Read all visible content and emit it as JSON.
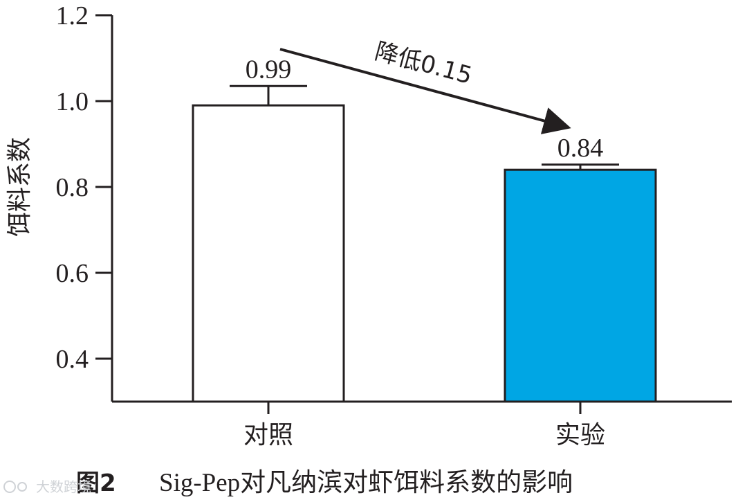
{
  "chart_data": {
    "type": "bar",
    "title": "",
    "xlabel": "",
    "ylabel": "饵料系数",
    "ylim": [
      0.3,
      1.2
    ],
    "yticks": [
      "0.4",
      "0.6",
      "0.8",
      "1.0",
      "1.2"
    ],
    "ytick_values": [
      0.4,
      0.6,
      0.8,
      1.0,
      1.2
    ],
    "categories": [
      "对照",
      "实验"
    ],
    "values": [
      0.99,
      0.84
    ],
    "errors": [
      0.045,
      0.012
    ],
    "data_labels": [
      "0.99",
      "0.84"
    ],
    "bar_colors": [
      "#ffffff",
      "#00a6e4"
    ],
    "edge_color": "#231f20",
    "grid": false,
    "legend": "none",
    "annotation": {
      "text": "降低0.15",
      "from_category": "对照",
      "to_category": "实验"
    }
  },
  "caption": {
    "figure_label": "图2",
    "text": "Sig-Pep对凡纳滨对虾饵料系数的影响"
  },
  "watermark": {
    "text": "大数跨境"
  }
}
